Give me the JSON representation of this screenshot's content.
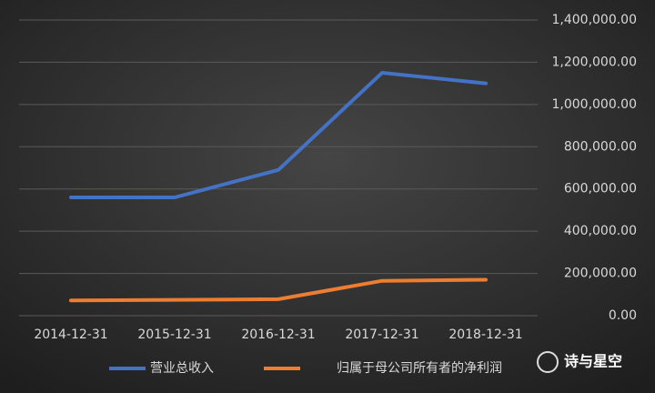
{
  "chart_data": {
    "type": "line",
    "categories": [
      "2014-12-31",
      "2015-12-31",
      "2016-12-31",
      "2017-12-31",
      "2018-12-31"
    ],
    "series": [
      {
        "name": "营业总收入",
        "color": "#4472c4",
        "values": [
          560000,
          560000,
          690000,
          1150000,
          1100000
        ]
      },
      {
        "name": "归属于母公司所有者的净利润",
        "color": "#ed7d31",
        "values": [
          72000,
          75000,
          78000,
          165000,
          170000
        ]
      }
    ],
    "ylim": [
      0,
      1400000
    ],
    "yticks": [
      {
        "value": 0,
        "label": "0.00"
      },
      {
        "value": 200000,
        "label": "200,000.00"
      },
      {
        "value": 400000,
        "label": "400,000.00"
      },
      {
        "value": 600000,
        "label": "600,000.00"
      },
      {
        "value": 800000,
        "label": "800,000.00"
      },
      {
        "value": 1000000,
        "label": "1,000,000.00"
      },
      {
        "value": 1200000,
        "label": "1,200,000.00"
      },
      {
        "value": 1400000,
        "label": "1,400,000.00"
      }
    ],
    "grid": true,
    "legend": "bottom",
    "watermark": "诗与星空"
  }
}
